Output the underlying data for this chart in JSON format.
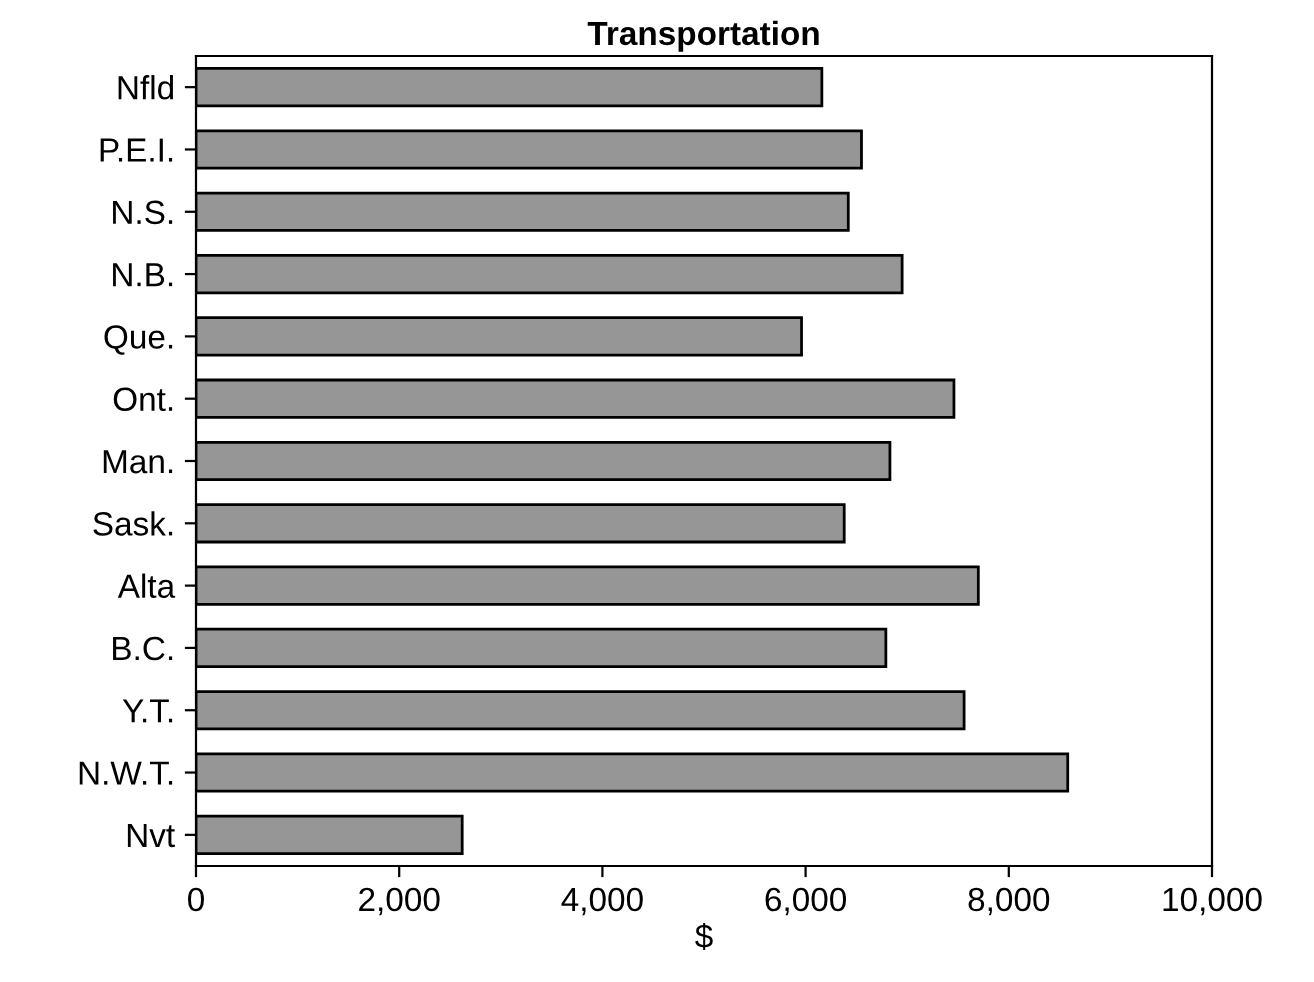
{
  "chart_data": {
    "type": "bar",
    "orientation": "horizontal",
    "title": "Transportation",
    "xlabel": "$",
    "categories": [
      "Nfld",
      "P.E.I.",
      "N.S.",
      "N.B.",
      "Que.",
      "Ont.",
      "Man.",
      "Sask.",
      "Alta",
      "B.C.",
      "Y.T.",
      "N.W.T.",
      "Nvt"
    ],
    "values": [
      6160,
      6550,
      6420,
      6950,
      5960,
      7460,
      6830,
      6380,
      7700,
      6790,
      7560,
      8580,
      2620
    ],
    "color": "#969696",
    "xlim": [
      0,
      10000
    ],
    "xticks": [
      0,
      {
        "value": 2000,
        "label": "2,000"
      },
      {
        "value": 4000,
        "label": "4,000"
      },
      {
        "value": 6000,
        "label": "6,000"
      },
      {
        "value": 8000,
        "label": "8,000"
      },
      {
        "value": 10000,
        "label": "10,000"
      }
    ]
  }
}
